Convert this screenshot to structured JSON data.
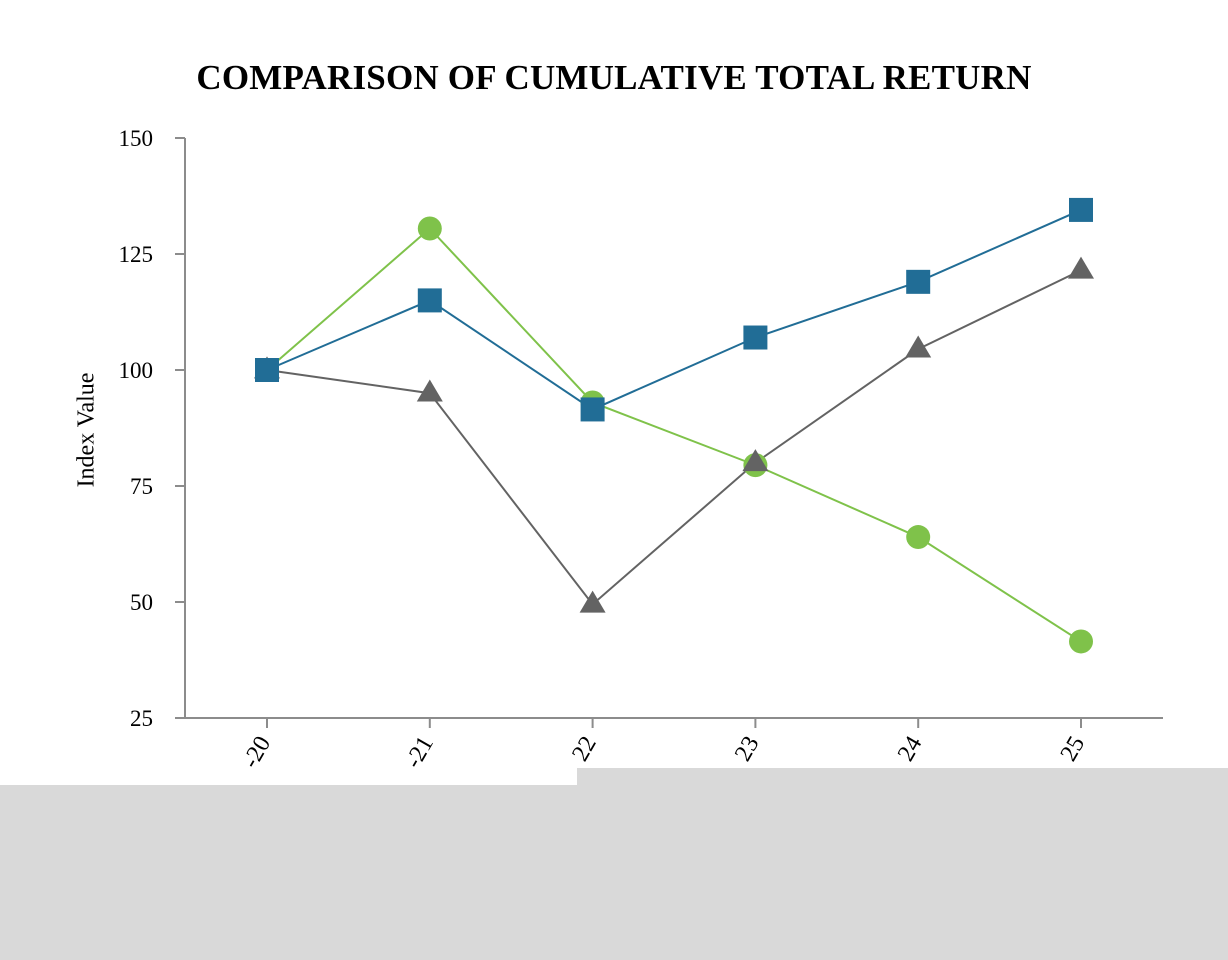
{
  "chart_data": {
    "type": "line",
    "title": "COMPARISON OF CUMULATIVE TOTAL RETURN",
    "ylabel": "Index Value",
    "xlabel": "",
    "ylim": [
      25,
      150
    ],
    "yticks": [
      25,
      50,
      75,
      100,
      125,
      150
    ],
    "categories": [
      "-20",
      "-21",
      "22",
      "23",
      "24",
      "25"
    ],
    "grid": false,
    "series": [
      {
        "marker": "circle",
        "color": "#7fc24a",
        "values": [
          100,
          130.5,
          93,
          79.5,
          64,
          41.5
        ]
      },
      {
        "marker": "square",
        "color": "#216d96",
        "values": [
          100,
          115,
          91.5,
          107,
          119,
          134.5
        ]
      },
      {
        "marker": "triangle",
        "color": "#636363",
        "values": [
          100,
          95,
          49.5,
          80,
          104.5,
          121.5
        ]
      }
    ]
  }
}
